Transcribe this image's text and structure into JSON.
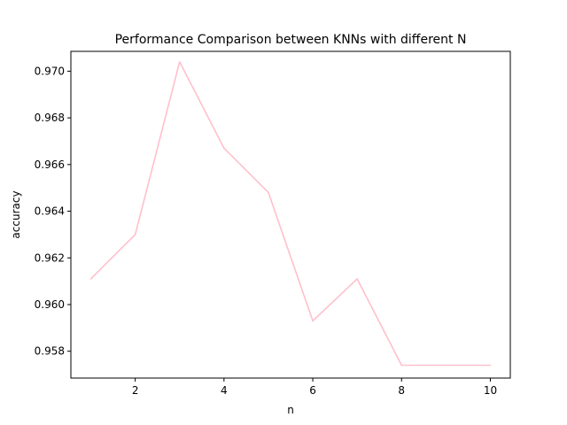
{
  "chart_data": {
    "type": "line",
    "title": "Performance Comparison between KNNs with different N",
    "xlabel": "n",
    "ylabel": "accuracy",
    "x": [
      1,
      2,
      3,
      4,
      5,
      6,
      7,
      8,
      9,
      10
    ],
    "series": [
      {
        "values": [
          0.9611,
          0.963,
          0.9704,
          0.9667,
          0.9648,
          0.9593,
          0.9611,
          0.9574,
          0.9574,
          0.9574
        ],
        "color": "#ffc0cb"
      }
    ],
    "xlim": [
      0.55,
      10.45
    ],
    "ylim": [
      0.95685,
      0.97085
    ],
    "xticks": [
      2,
      4,
      6,
      8,
      10
    ],
    "yticks": [
      0.958,
      0.96,
      0.962,
      0.964,
      0.966,
      0.968,
      0.97
    ],
    "xtick_labels": [
      "2",
      "4",
      "6",
      "8",
      "10"
    ],
    "ytick_labels": [
      "0.958",
      "0.960",
      "0.962",
      "0.964",
      "0.966",
      "0.968",
      "0.970"
    ],
    "grid": false,
    "legend": "none"
  }
}
